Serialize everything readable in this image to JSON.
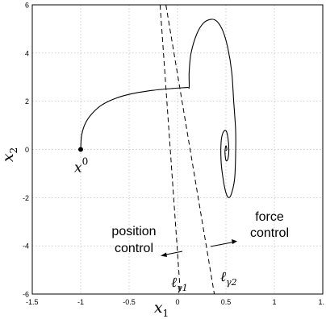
{
  "chart_data": {
    "type": "line",
    "xlim": [
      -1.5,
      1.5
    ],
    "ylim": [
      -6,
      6
    ],
    "x_ticks": [
      "-1.5",
      "-1",
      "-0.5",
      "0",
      "0.5",
      "1",
      "1."
    ],
    "y_ticks": [
      "6",
      "4",
      "2",
      "0",
      "-2",
      "-4",
      "-6"
    ],
    "xlabel": {
      "main": "x",
      "sub": "1"
    },
    "ylabel": {
      "main": "x",
      "sub": "2"
    },
    "grid": true,
    "start_point": {
      "x": -1,
      "y": 0,
      "label_main": "x",
      "label_sup": "0"
    },
    "trajectory": [
      [
        -1,
        0
      ],
      [
        -0.99,
        0.6
      ],
      [
        -0.95,
        1.1
      ],
      [
        -0.88,
        1.5
      ],
      [
        -0.78,
        1.85
      ],
      [
        -0.64,
        2.12
      ],
      [
        -0.46,
        2.32
      ],
      [
        -0.26,
        2.45
      ],
      [
        -0.05,
        2.53
      ],
      [
        0.1,
        2.57
      ],
      [
        0.12,
        2.59
      ],
      [
        0.12,
        3.2
      ],
      [
        0.14,
        4.0
      ],
      [
        0.2,
        4.8
      ],
      [
        0.27,
        5.25
      ],
      [
        0.35,
        5.4
      ],
      [
        0.41,
        5.3
      ],
      [
        0.47,
        4.9
      ],
      [
        0.52,
        4.2
      ],
      [
        0.56,
        3.2
      ],
      [
        0.58,
        2.0
      ],
      [
        0.6,
        0.8
      ],
      [
        0.6,
        -0.2
      ],
      [
        0.59,
        -1.2
      ],
      [
        0.56,
        -1.8
      ],
      [
        0.53,
        -2.0
      ],
      [
        0.5,
        -1.8
      ],
      [
        0.47,
        -1.2
      ],
      [
        0.45,
        -0.5
      ],
      [
        0.45,
        0.3
      ],
      [
        0.47,
        0.7
      ],
      [
        0.5,
        0.78
      ],
      [
        0.52,
        0.5
      ],
      [
        0.53,
        0.0
      ],
      [
        0.52,
        -0.4
      ],
      [
        0.5,
        -0.45
      ],
      [
        0.49,
        -0.1
      ],
      [
        0.5,
        0.15
      ],
      [
        0.51,
        0.0
      ],
      [
        0.5,
        -0.05
      ]
    ],
    "switching_lines": [
      {
        "label_main": "ℓ",
        "label_sub": "γ1",
        "points": [
          [
            -0.18,
            6
          ],
          [
            0.03,
            -6
          ]
        ]
      },
      {
        "label_main": "ℓ",
        "label_sub": "γ2",
        "points": [
          [
            -0.12,
            6
          ],
          [
            0.38,
            -6
          ]
        ]
      }
    ],
    "annotations": {
      "left_region": [
        "position",
        "control"
      ],
      "right_region": [
        "force",
        "control"
      ]
    }
  }
}
